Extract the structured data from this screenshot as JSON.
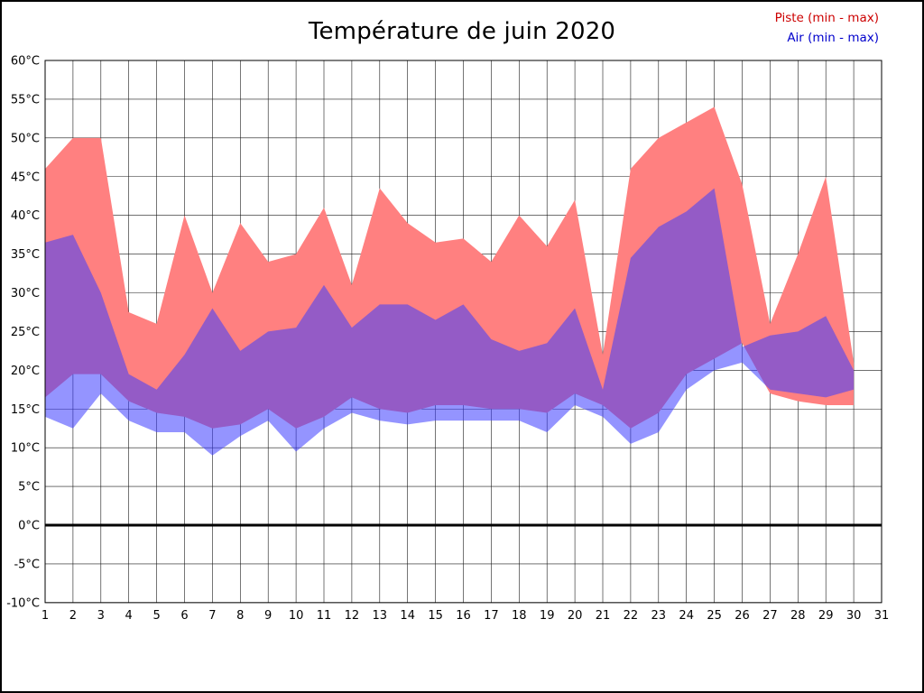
{
  "title": "Température de juin 2020",
  "legend": {
    "piste": {
      "label": "Piste (min - max)",
      "color": "#cc0000"
    },
    "air": {
      "label": "Air (min - max)",
      "color": "#0000cc"
    }
  },
  "chart_data": {
    "type": "area",
    "title": "Température de juin 2020",
    "xlabel": "",
    "ylabel": "",
    "xlim": [
      1,
      31
    ],
    "ylim": [
      -10,
      60
    ],
    "grid": true,
    "legend_position": "top-right",
    "x_ticks": [
      "1",
      "2",
      "3",
      "4",
      "5",
      "6",
      "7",
      "8",
      "9",
      "10",
      "11",
      "12",
      "13",
      "14",
      "15",
      "16",
      "17",
      "18",
      "19",
      "20",
      "21",
      "22",
      "23",
      "24",
      "25",
      "26",
      "27",
      "28",
      "29",
      "30",
      "31"
    ],
    "y_ticks": [
      "60°C",
      "55°C",
      "50°C",
      "45°C",
      "40°C",
      "35°C",
      "30°C",
      "25°C",
      "20°C",
      "15°C",
      "10°C",
      "5°C",
      "0°C",
      "-5°C",
      "-10°C"
    ],
    "y_tick_values": [
      60,
      55,
      50,
      45,
      40,
      35,
      30,
      25,
      20,
      15,
      10,
      5,
      0,
      -5,
      -10
    ],
    "days": [
      1,
      2,
      3,
      4,
      5,
      6,
      7,
      8,
      9,
      10,
      11,
      12,
      13,
      14,
      15,
      16,
      17,
      18,
      19,
      20,
      21,
      22,
      23,
      24,
      25,
      26,
      27,
      28,
      29,
      30
    ],
    "series": [
      {
        "name": "Piste max",
        "values": [
          46,
          50,
          50,
          27.5,
          26,
          40,
          30,
          39,
          34,
          35,
          41,
          31,
          43.5,
          39,
          36.5,
          37,
          34,
          40,
          36,
          42,
          22,
          46,
          50,
          52,
          54,
          44,
          26,
          35,
          45,
          21
        ]
      },
      {
        "name": "Piste min",
        "values": [
          16.5,
          19.5,
          19.5,
          16,
          14.5,
          14,
          12.5,
          13,
          15,
          12.5,
          14,
          16.5,
          15,
          14.5,
          15.5,
          15.5,
          15,
          15,
          14.5,
          17,
          15.5,
          12.5,
          14.5,
          19.5,
          21.5,
          23.5,
          17,
          16,
          15.5,
          15.5
        ]
      },
      {
        "name": "Air max",
        "values": [
          36.5,
          37.5,
          30,
          19.5,
          17.5,
          22,
          28,
          22.5,
          25,
          25.5,
          31,
          25.5,
          28.5,
          28.5,
          26.5,
          28.5,
          24,
          22.5,
          23.5,
          28,
          17.5,
          34.5,
          38.5,
          40.5,
          43.5,
          23,
          24.5,
          25,
          27,
          20
        ]
      },
      {
        "name": "Air min",
        "values": [
          14,
          12.5,
          17,
          13.5,
          12,
          12,
          9,
          11.5,
          13.5,
          9.5,
          12.5,
          14.5,
          13.5,
          13,
          13.5,
          13.5,
          13.5,
          13.5,
          12,
          15.5,
          14,
          10.5,
          12,
          17.5,
          20,
          21,
          17.5,
          17,
          16.5,
          17.5
        ]
      }
    ],
    "colors": {
      "piste_band": "#ff8080",
      "air_band": "#3c3cff",
      "air_band_opacity": 0.55,
      "zero_line": "#000000",
      "grid_line": "#1a1a1a",
      "plot_border": "#000000"
    }
  }
}
